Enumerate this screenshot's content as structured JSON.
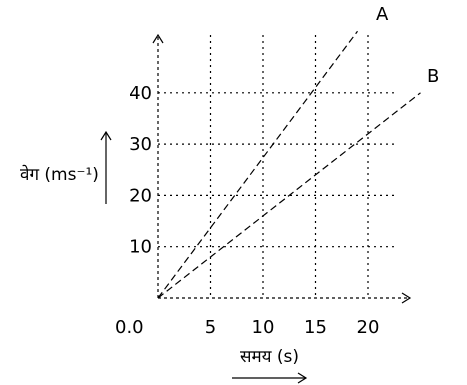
{
  "chart_data": {
    "type": "line",
    "xlabel": "समय (s)",
    "ylabel": "वेग (ms⁻¹)",
    "origin_label": "0.0",
    "x_ticks": [
      5,
      10,
      15,
      20
    ],
    "y_ticks": [
      10,
      20,
      30,
      40
    ],
    "xlim": [
      0,
      25
    ],
    "ylim": [
      0,
      53
    ],
    "grid": true,
    "series": [
      {
        "name": "A",
        "x": [
          0,
          19
        ],
        "y": [
          0,
          52
        ]
      },
      {
        "name": "B",
        "x": [
          0,
          25
        ],
        "y": [
          0,
          40
        ]
      }
    ]
  }
}
